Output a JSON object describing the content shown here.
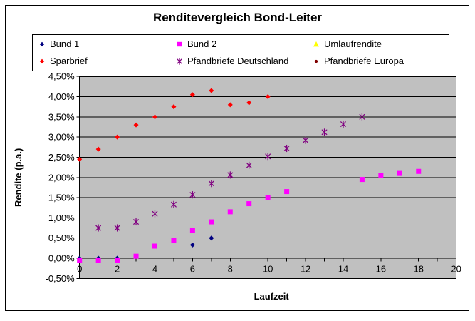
{
  "title": "Renditevergleich Bond-Leiter",
  "chart_data": {
    "type": "scatter",
    "title": "Renditevergleich Bond-Leiter",
    "xlabel": "Laufzeit",
    "ylabel": "Rendite (p.a.)",
    "xlim": [
      0,
      20
    ],
    "ylim": [
      -0.5,
      4.5
    ],
    "grid": "horizontal",
    "legend_position": "top",
    "plot_bg": "#c0c0c0",
    "axis_color": "#000000",
    "x_tick_labels": [
      "0",
      "2",
      "4",
      "6",
      "8",
      "10",
      "12",
      "14",
      "16",
      "18",
      "20"
    ],
    "y_tick_labels": [
      "4,50%",
      "4,00%",
      "3,50%",
      "3,00%",
      "2,50%",
      "2,00%",
      "1,50%",
      "1,00%",
      "0,50%",
      "0,00%",
      "-0,50%"
    ],
    "y_unit": "percent",
    "series": [
      {
        "name": "Bund 1",
        "marker": "diamond",
        "color": "#000080",
        "points": [
          [
            0,
            0.0
          ],
          [
            1,
            0.0
          ],
          [
            2,
            0.0
          ],
          [
            6,
            0.33
          ],
          [
            7,
            0.5
          ]
        ]
      },
      {
        "name": "Bund 2",
        "marker": "square",
        "color": "#ff00ff",
        "points": [
          [
            0,
            -0.05
          ],
          [
            1,
            -0.05
          ],
          [
            2,
            -0.05
          ],
          [
            3,
            0.05
          ],
          [
            4,
            0.3
          ],
          [
            5,
            0.45
          ],
          [
            6,
            0.68
          ],
          [
            7,
            0.9
          ],
          [
            8,
            1.15
          ],
          [
            9,
            1.35
          ],
          [
            10,
            1.5
          ],
          [
            11,
            1.65
          ],
          [
            15,
            1.95
          ],
          [
            16,
            2.05
          ],
          [
            17,
            2.1
          ],
          [
            18,
            2.15
          ]
        ]
      },
      {
        "name": "Umlaufrendite",
        "marker": "triangle",
        "color": "#ffff00",
        "points": []
      },
      {
        "name": "Sparbrief",
        "marker": "diamond",
        "color": "#ff0000",
        "points": [
          [
            0,
            2.45
          ],
          [
            1,
            2.7
          ],
          [
            2,
            3.0
          ],
          [
            3,
            3.3
          ],
          [
            4,
            3.5
          ],
          [
            5,
            3.75
          ],
          [
            6,
            4.05
          ],
          [
            7,
            4.15
          ],
          [
            8,
            3.8
          ],
          [
            9,
            3.85
          ],
          [
            10,
            4.0
          ]
        ]
      },
      {
        "name": "Pfandbriefe Deutschland",
        "marker": "asterisk",
        "color": "#800080",
        "points": [
          [
            1,
            0.75
          ],
          [
            2,
            0.75
          ],
          [
            3,
            0.9
          ],
          [
            4,
            1.1
          ],
          [
            5,
            1.33
          ],
          [
            6,
            1.57
          ],
          [
            7,
            1.85
          ],
          [
            8,
            2.06
          ],
          [
            9,
            2.3
          ],
          [
            10,
            2.52
          ],
          [
            11,
            2.72
          ],
          [
            12,
            2.92
          ],
          [
            13,
            3.12
          ],
          [
            14,
            3.32
          ],
          [
            15,
            3.5
          ]
        ]
      },
      {
        "name": "Pfandbriefe Europa",
        "marker": "circle",
        "color": "#800000",
        "points": []
      }
    ]
  }
}
